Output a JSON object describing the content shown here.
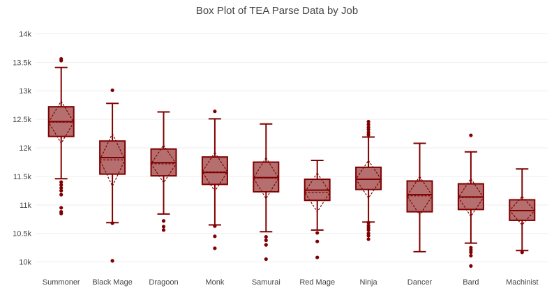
{
  "chart_data": {
    "type": "box",
    "title": "Box Plot of TEA Parse Data by Job",
    "xlabel": "",
    "ylabel": "",
    "ylim": [
      9800,
      14250
    ],
    "yticks": [
      10000,
      10500,
      11000,
      11500,
      12000,
      12500,
      13000,
      13500,
      14000
    ],
    "ytick_labels": [
      "10k",
      "10.5k",
      "11k",
      "11.5k",
      "12k",
      "12.5k",
      "13k",
      "13.5k",
      "14k"
    ],
    "grid": true,
    "legend": "none",
    "colors": {
      "line": "#7f0000",
      "fill": "#b56f6f",
      "grid": "#eeeeee"
    },
    "categories": [
      "Summoner",
      "Black Mage",
      "Dragoon",
      "Monk",
      "Samurai",
      "Red Mage",
      "Ninja",
      "Dancer",
      "Bard",
      "Machinist"
    ],
    "boxes": [
      {
        "min": 11460,
        "q1": 12200,
        "median": 12460,
        "q3": 12720,
        "max": 13410,
        "mean": 12450,
        "sd": 370,
        "outliers": [
          13560,
          13530,
          11400,
          11350,
          11300,
          11250,
          11180,
          10950,
          10880,
          10850
        ]
      },
      {
        "min": 10690,
        "q1": 11540,
        "median": 11830,
        "q3": 12120,
        "max": 12780,
        "mean": 11790,
        "sd": 460,
        "outliers": [
          13010,
          10680,
          10020
        ]
      },
      {
        "min": 10840,
        "q1": 11510,
        "median": 11740,
        "q3": 11980,
        "max": 12630,
        "mean": 11720,
        "sd": 330,
        "outliers": [
          10720,
          10620,
          10560
        ]
      },
      {
        "min": 10650,
        "q1": 11360,
        "median": 11570,
        "q3": 11840,
        "max": 12510,
        "mean": 11580,
        "sd": 340,
        "outliers": [
          12640,
          10630,
          10450,
          10240
        ]
      },
      {
        "min": 10530,
        "q1": 11230,
        "median": 11480,
        "q3": 11750,
        "max": 12420,
        "mean": 11470,
        "sd": 360,
        "outliers": [
          10440,
          10380,
          10300,
          10050
        ]
      },
      {
        "min": 10560,
        "q1": 11080,
        "median": 11260,
        "q3": 11450,
        "max": 11780,
        "mean": 11220,
        "sd": 340,
        "outliers": [
          10510,
          10360,
          10080
        ]
      },
      {
        "min": 10700,
        "q1": 11270,
        "median": 11450,
        "q3": 11660,
        "max": 12190,
        "mean": 11450,
        "sd": 330,
        "outliers": [
          12460,
          12410,
          12360,
          12320,
          12270,
          12230,
          10690,
          10640,
          10600,
          10560,
          10500,
          10460,
          10400
        ]
      },
      {
        "min": 10180,
        "q1": 10880,
        "median": 11180,
        "q3": 11420,
        "max": 12080,
        "mean": 11160,
        "sd": 340,
        "outliers": []
      },
      {
        "min": 10330,
        "q1": 10920,
        "median": 11140,
        "q3": 11370,
        "max": 11930,
        "mean": 11130,
        "sd": 330,
        "outliers": [
          12220,
          10250,
          10210,
          10170,
          10110,
          9930
        ]
      },
      {
        "min": 10200,
        "q1": 10730,
        "median": 10900,
        "q3": 11090,
        "max": 11630,
        "mean": 10900,
        "sd": 250,
        "outliers": [
          10170
        ]
      }
    ]
  }
}
